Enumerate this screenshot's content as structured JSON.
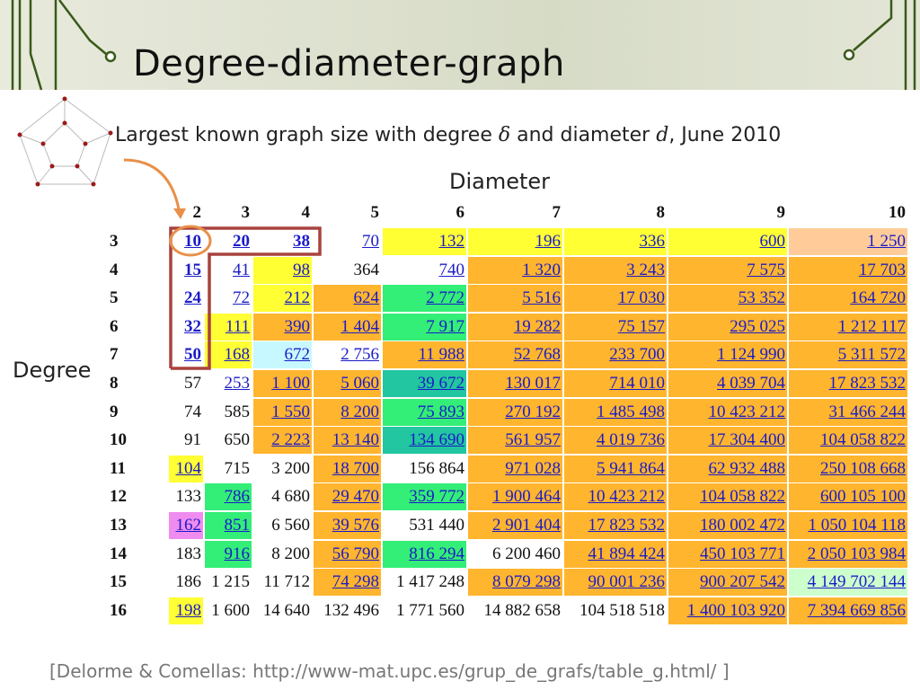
{
  "header": {
    "title": "Degree-diameter-graph"
  },
  "caption": [
    "Largest known graph size with degree ",
    "δ",
    " and diameter ",
    "d",
    ", June 2010"
  ],
  "column_label": "Diameter",
  "row_label": "Degree",
  "table": {
    "columns": [
      "2",
      "3",
      "4",
      "5",
      "6",
      "7",
      "8",
      "9",
      "10"
    ],
    "rows": [
      {
        "degree": "3",
        "cells": [
          "10",
          "20",
          "38",
          "70",
          "132",
          "196",
          "336",
          "600",
          "1 250"
        ]
      },
      {
        "degree": "4",
        "cells": [
          "15",
          "41",
          "98",
          "364",
          "740",
          "1 320",
          "3 243",
          "7 575",
          "17 703"
        ]
      },
      {
        "degree": "5",
        "cells": [
          "24",
          "72",
          "212",
          "624",
          "2 772",
          "5 516",
          "17 030",
          "53 352",
          "164 720"
        ]
      },
      {
        "degree": "6",
        "cells": [
          "32",
          "111",
          "390",
          "1 404",
          "7 917",
          "19 282",
          "75 157",
          "295 025",
          "1 212 117"
        ]
      },
      {
        "degree": "7",
        "cells": [
          "50",
          "168",
          "672",
          "2 756",
          "11 988",
          "52 768",
          "233 700",
          "1 124 990",
          "5 311 572"
        ]
      },
      {
        "degree": "8",
        "cells": [
          "57",
          "253",
          "1 100",
          "5 060",
          "39 672",
          "130 017",
          "714 010",
          "4 039 704",
          "17 823 532"
        ]
      },
      {
        "degree": "9",
        "cells": [
          "74",
          "585",
          "1 550",
          "8 200",
          "75 893",
          "270 192",
          "1 485 498",
          "10 423 212",
          "31 466 244"
        ]
      },
      {
        "degree": "10",
        "cells": [
          "91",
          "650",
          "2 223",
          "13 140",
          "134 690",
          "561 957",
          "4 019 736",
          "17 304 400",
          "104 058 822"
        ]
      },
      {
        "degree": "11",
        "cells": [
          "104",
          "715",
          "3 200",
          "18 700",
          "156 864",
          "971 028",
          "5 941 864",
          "62 932 488",
          "250 108 668"
        ]
      },
      {
        "degree": "12",
        "cells": [
          "133",
          "786",
          "4 680",
          "29 470",
          "359 772",
          "1 900 464",
          "10 423 212",
          "104 058 822",
          "600 105 100"
        ]
      },
      {
        "degree": "13",
        "cells": [
          "162",
          "851",
          "6 560",
          "39 576",
          "531 440",
          "2 901 404",
          "17 823 532",
          "180 002 472",
          "1 050 104 118"
        ]
      },
      {
        "degree": "14",
        "cells": [
          "183",
          "916",
          "8 200",
          "56 790",
          "816 294",
          "6 200 460",
          "41 894 424",
          "450 103 771",
          "2 050 103 984"
        ]
      },
      {
        "degree": "15",
        "cells": [
          "186",
          "1 215",
          "11 712",
          "74 298",
          "1 417 248",
          "8 079 298",
          "90 001 236",
          "900 207 542",
          "4 149 702 144"
        ]
      },
      {
        "degree": "16",
        "cells": [
          "198",
          "1 600",
          "14 640",
          "132 496",
          "1 771 560",
          "14 882 658",
          "104 518 518",
          "1 400 103 920",
          "7 394 669 856"
        ]
      }
    ]
  },
  "citation": "[Delorme & Comellas: http://www-mat.upc.es/grup_de_grafs/table_g.html/ ]"
}
